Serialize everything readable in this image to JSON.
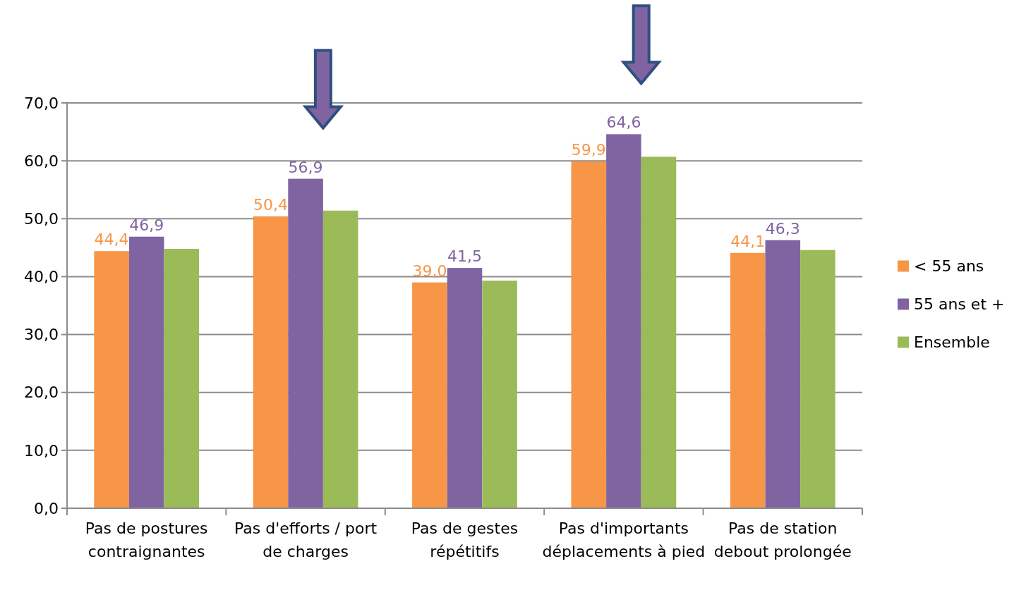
{
  "chart_data": {
    "type": "bar",
    "categories": [
      "Pas de postures contraignantes",
      "Pas d'efforts / port de charges",
      "Pas de gestes répétitifs",
      "Pas d'importants déplacements à pied",
      "Pas de station debout prolongée"
    ],
    "series": [
      {
        "name": "< 55 ans",
        "color": "#f79646",
        "values": [
          44.4,
          50.4,
          39.0,
          59.9,
          44.1
        ],
        "value_labels": [
          "44,4",
          "50,4",
          "39,0",
          "59,9",
          "44,1"
        ]
      },
      {
        "name": "55 ans et +",
        "color": "#8064a2",
        "values": [
          46.9,
          56.9,
          41.5,
          64.6,
          46.3
        ],
        "value_labels": [
          "46,9",
          "56,9",
          "41,5",
          "64,6",
          "46,3"
        ]
      },
      {
        "name": "Ensemble",
        "color": "#9bbb59",
        "values": [
          44.8,
          51.4,
          39.3,
          60.7,
          44.6
        ]
      }
    ],
    "ylim": [
      0,
      70
    ],
    "yticks": [
      {
        "value": 0,
        "label": "0,0"
      },
      {
        "value": 10,
        "label": "10,0"
      },
      {
        "value": 20,
        "label": "20,0"
      },
      {
        "value": 30,
        "label": "30,0"
      },
      {
        "value": 40,
        "label": "40,0"
      },
      {
        "value": 50,
        "label": "50,0"
      },
      {
        "value": 60,
        "label": "60,0"
      },
      {
        "value": 70,
        "label": "70,0"
      }
    ],
    "grid": "y",
    "legend": "right"
  }
}
